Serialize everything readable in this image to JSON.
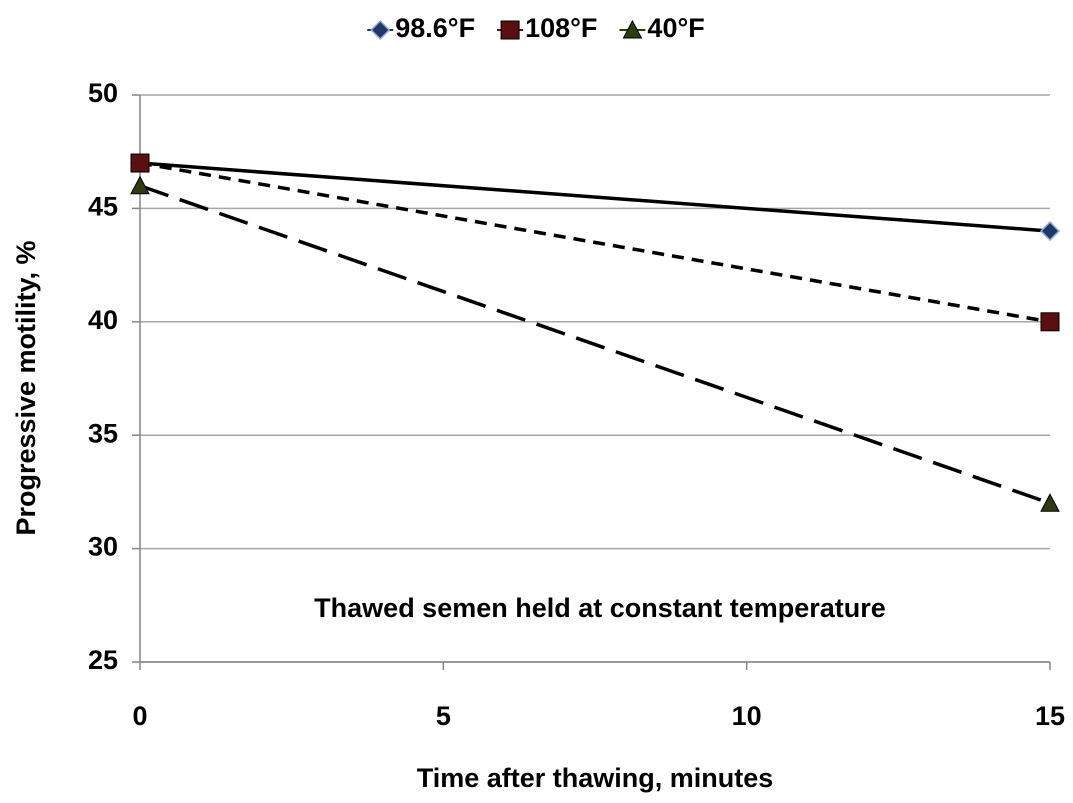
{
  "chart_data": {
    "type": "line",
    "x": [
      0,
      15
    ],
    "series": [
      {
        "name": "98.6°F",
        "color": "#1f3864",
        "marker": "diamond",
        "dash": "solid",
        "values": [
          47,
          44
        ]
      },
      {
        "name": "108°F",
        "color": "#5a1010",
        "marker": "square",
        "dash": "short",
        "values": [
          47,
          40
        ]
      },
      {
        "name": "40°F",
        "color": "#2e3a10",
        "marker": "triangle",
        "dash": "long",
        "values": [
          46,
          32
        ]
      }
    ],
    "xlim": [
      0,
      15
    ],
    "xticks": [
      0,
      5,
      10,
      15
    ],
    "ylim": [
      25,
      50
    ],
    "yticks": [
      25,
      30,
      35,
      40,
      45,
      50
    ],
    "grid": true,
    "legend": "top",
    "xlabel": "Time after thawing, minutes",
    "ylabel": "Progressive motility, %",
    "annotation": "Thawed semen held at constant temperature"
  }
}
